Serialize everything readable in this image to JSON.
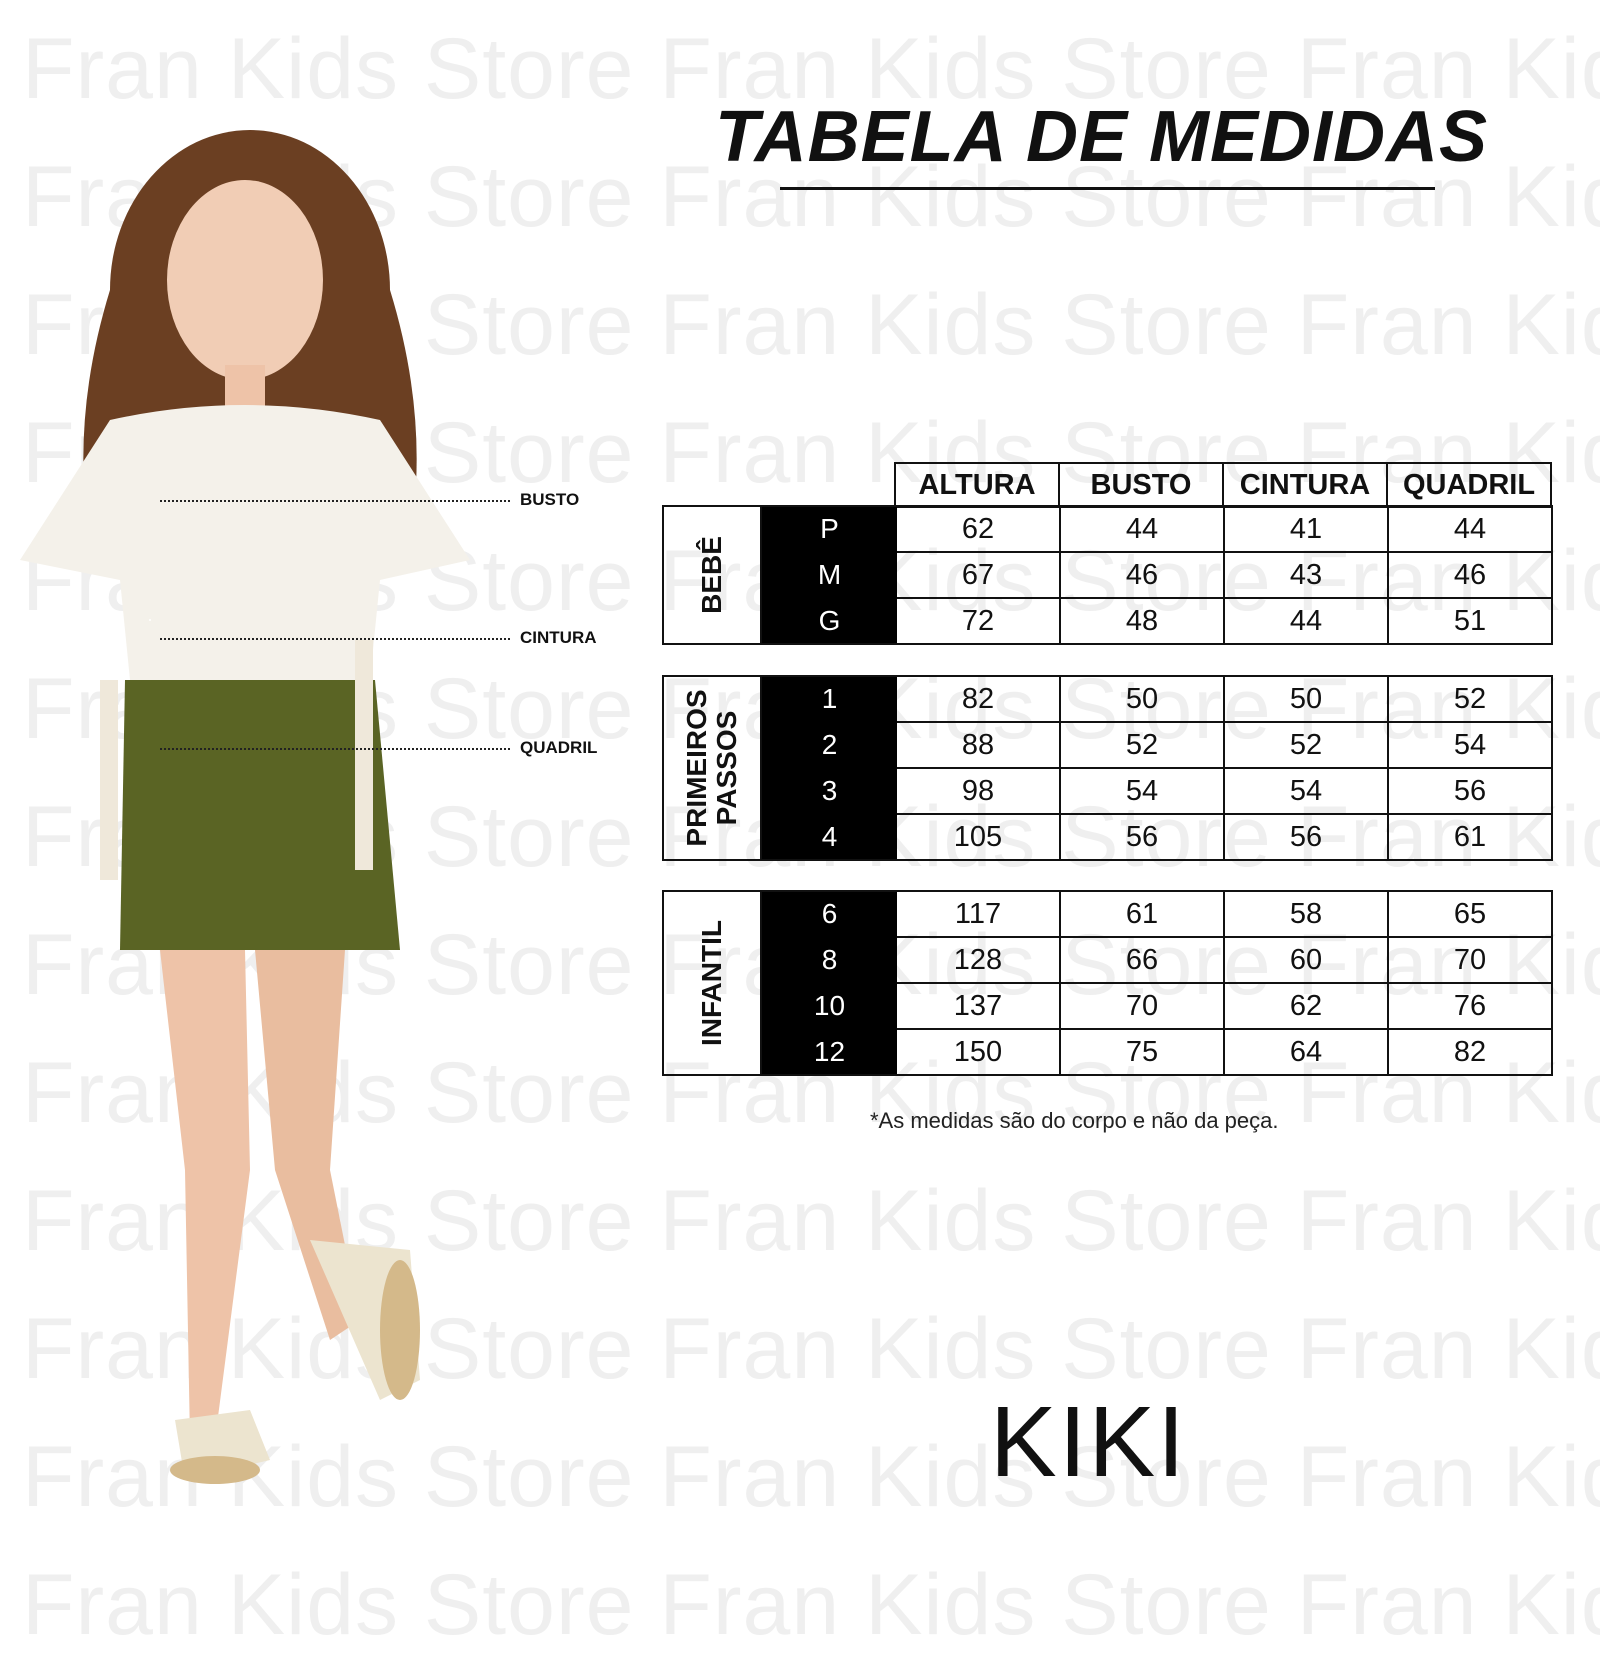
{
  "watermark": "Fran Kids Store",
  "title": "TABELA DE MEDIDAS",
  "body_labels": {
    "busto": "BUSTO",
    "cintura": "CINTURA",
    "quadril": "QUADRIL"
  },
  "table": {
    "columns": [
      "ALTURA",
      "BUSTO",
      "CINTURA",
      "QUADRIL"
    ],
    "groups": [
      {
        "label": "BEBÊ",
        "rows": [
          {
            "size": "P",
            "values": [
              "62",
              "44",
              "41",
              "44"
            ]
          },
          {
            "size": "M",
            "values": [
              "67",
              "46",
              "43",
              "46"
            ]
          },
          {
            "size": "G",
            "values": [
              "72",
              "48",
              "44",
              "51"
            ]
          }
        ]
      },
      {
        "label": "PRIMEIROS PASSOS",
        "rows": [
          {
            "size": "1",
            "values": [
              "82",
              "50",
              "50",
              "52"
            ]
          },
          {
            "size": "2",
            "values": [
              "88",
              "52",
              "52",
              "54"
            ]
          },
          {
            "size": "3",
            "values": [
              "98",
              "54",
              "54",
              "56"
            ]
          },
          {
            "size": "4",
            "values": [
              "105",
              "56",
              "56",
              "61"
            ]
          }
        ]
      },
      {
        "label": "INFANTIL",
        "rows": [
          {
            "size": "6",
            "values": [
              "117",
              "61",
              "58",
              "65"
            ]
          },
          {
            "size": "8",
            "values": [
              "128",
              "66",
              "60",
              "70"
            ]
          },
          {
            "size": "10",
            "values": [
              "137",
              "70",
              "62",
              "76"
            ]
          },
          {
            "size": "12",
            "values": [
              "150",
              "75",
              "64",
              "82"
            ]
          }
        ]
      }
    ]
  },
  "footnote": "*As medidas são do corpo e não da peça.",
  "brand": "KIKI",
  "colors": {
    "skirt": "#5a6424",
    "hair": "#6b3f22",
    "top": "#f4f1ea"
  }
}
